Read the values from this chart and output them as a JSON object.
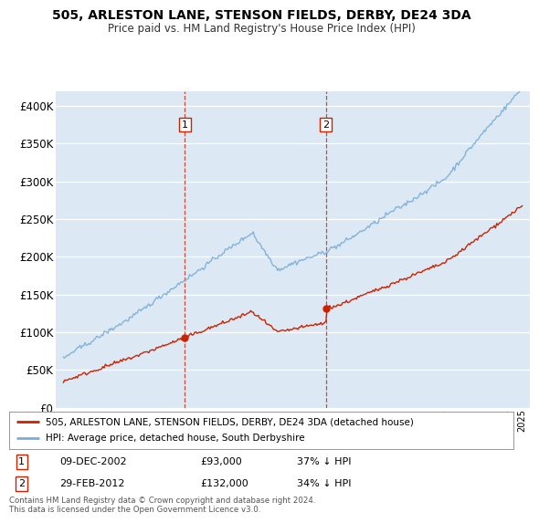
{
  "title": "505, ARLESTON LANE, STENSON FIELDS, DERBY, DE24 3DA",
  "subtitle": "Price paid vs. HM Land Registry's House Price Index (HPI)",
  "background_color": "#dce9f5",
  "hpi_color": "#7aaed6",
  "price_color": "#cc2200",
  "vline_color": "#cc2200",
  "sale1": {
    "date_num": 2002.94,
    "price": 93000,
    "label": "1",
    "text": "09-DEC-2002",
    "price_text": "£93,000",
    "pct_text": "37% ↓ HPI"
  },
  "sale2": {
    "date_num": 2012.17,
    "price": 132000,
    "label": "2",
    "text": "29-FEB-2012",
    "price_text": "£132,000",
    "pct_text": "34% ↓ HPI"
  },
  "ylim": [
    0,
    420000
  ],
  "xlim_start": 1994.5,
  "xlim_end": 2025.5,
  "legend_house_label": "505, ARLESTON LANE, STENSON FIELDS, DERBY, DE24 3DA (detached house)",
  "legend_hpi_label": "HPI: Average price, detached house, South Derbyshire",
  "footnote": "Contains HM Land Registry data © Crown copyright and database right 2024.\nThis data is licensed under the Open Government Licence v3.0."
}
